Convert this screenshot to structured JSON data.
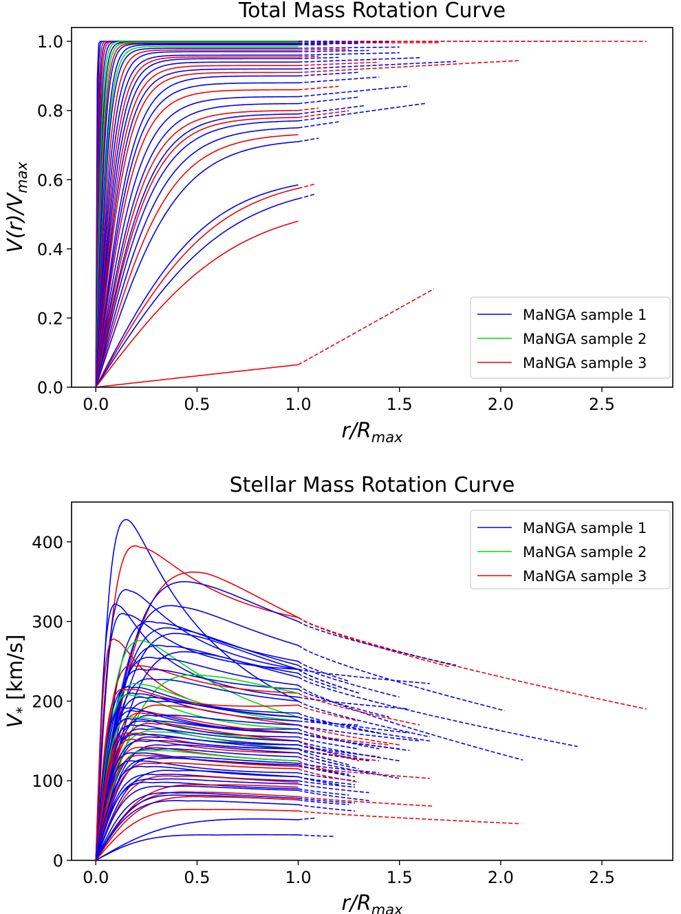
{
  "chart_data": [
    {
      "type": "line",
      "title": "Total Mass Rotation Curve",
      "xlabel": {
        "base": "r/R",
        "sub": "max"
      },
      "ylabel": {
        "base": "V(r)/V",
        "sub": "max"
      },
      "xlim": [
        -0.12,
        2.85
      ],
      "ylim": [
        0,
        1.04
      ],
      "xticks": [
        "0.0",
        "0.5",
        "1.0",
        "1.5",
        "2.0",
        "2.5"
      ],
      "xtick_values": [
        0,
        0.5,
        1.0,
        1.5,
        2.0,
        2.5
      ],
      "yticks": [
        "0.0",
        "0.2",
        "0.4",
        "0.6",
        "0.8",
        "1.0"
      ],
      "ytick_values": [
        0,
        0.2,
        0.4,
        0.6,
        0.8,
        1.0
      ],
      "legend": {
        "position": "lower-right",
        "entries": [
          {
            "label": "MaNGA sample 1",
            "color": "#0000ee"
          },
          {
            "label": "MaNGA sample 2",
            "color": "#00dd00"
          },
          {
            "label": "MaNGA sample 3",
            "color": "#ee0000"
          }
        ]
      },
      "line_style": "solid for r/R_max <= 1, dashed beyond",
      "curves": [
        {
          "s": 1,
          "c": 0.005,
          "vend": 1.0,
          "xend": 1.0
        },
        {
          "s": 1,
          "c": 0.008,
          "vend": 1.0,
          "xend": 1.03
        },
        {
          "s": 3,
          "c": 0.012,
          "vend": 1.0,
          "xend": 1.0
        },
        {
          "s": 1,
          "c": 0.016,
          "vend": 1.0,
          "xend": 2.38
        },
        {
          "s": 3,
          "c": 0.02,
          "vend": 1.0,
          "xend": 2.72
        },
        {
          "s": 1,
          "c": 0.025,
          "vend": 0.999,
          "xend": 1.2
        },
        {
          "s": 2,
          "c": 0.03,
          "vend": 0.999,
          "xend": 1.0
        },
        {
          "s": 1,
          "c": 0.035,
          "vend": 0.998,
          "xend": 1.45
        },
        {
          "s": 2,
          "c": 0.04,
          "vend": 0.997,
          "xend": 1.05
        },
        {
          "s": 3,
          "c": 0.045,
          "vend": 0.995,
          "xend": 1.7
        },
        {
          "s": 1,
          "c": 0.05,
          "vend": 0.993,
          "xend": 1.3
        },
        {
          "s": 1,
          "c": 0.06,
          "vend": 0.99,
          "xend": 1.15
        },
        {
          "s": 2,
          "c": 0.065,
          "vend": 0.985,
          "xend": 1.0
        },
        {
          "s": 1,
          "c": 0.07,
          "vend": 0.98,
          "xend": 1.5
        },
        {
          "s": 3,
          "c": 0.08,
          "vend": 0.975,
          "xend": 1.25
        },
        {
          "s": 1,
          "c": 0.09,
          "vend": 0.97,
          "xend": 1.35
        },
        {
          "s": 1,
          "c": 0.1,
          "vend": 0.96,
          "xend": 1.5
        },
        {
          "s": 3,
          "c": 0.11,
          "vend": 0.955,
          "xend": 1.1
        },
        {
          "s": 1,
          "c": 0.12,
          "vend": 0.95,
          "xend": 1.2
        },
        {
          "s": 1,
          "c": 0.13,
          "vend": 0.94,
          "xend": 1.6
        },
        {
          "s": 3,
          "c": 0.14,
          "vend": 0.93,
          "xend": 1.4
        },
        {
          "s": 1,
          "c": 0.15,
          "vend": 0.92,
          "xend": 1.78
        },
        {
          "s": 3,
          "c": 0.16,
          "vend": 0.91,
          "xend": 2.1
        },
        {
          "s": 1,
          "c": 0.18,
          "vend": 0.9,
          "xend": 1.3
        },
        {
          "s": 1,
          "c": 0.19,
          "vend": 0.88,
          "xend": 1.4
        },
        {
          "s": 3,
          "c": 0.2,
          "vend": 0.86,
          "xend": 1.2
        },
        {
          "s": 1,
          "c": 0.22,
          "vend": 0.84,
          "xend": 1.55
        },
        {
          "s": 1,
          "c": 0.24,
          "vend": 0.82,
          "xend": 1.3
        },
        {
          "s": 3,
          "c": 0.25,
          "vend": 0.8,
          "xend": 1.1
        },
        {
          "s": 1,
          "c": 0.27,
          "vend": 0.79,
          "xend": 1.33
        },
        {
          "s": 3,
          "c": 0.28,
          "vend": 0.78,
          "xend": 1.25
        },
        {
          "s": 1,
          "c": 0.3,
          "vend": 0.77,
          "xend": 1.63
        },
        {
          "s": 1,
          "c": 0.33,
          "vend": 0.75,
          "xend": 1.2
        },
        {
          "s": 3,
          "c": 0.36,
          "vend": 0.73,
          "xend": 1.0
        },
        {
          "s": 1,
          "c": 0.4,
          "vend": 0.71,
          "xend": 1.1
        },
        {
          "s": 1,
          "c": 0.55,
          "vend": 0.585,
          "xend": 1.0
        },
        {
          "s": 3,
          "c": 0.6,
          "vend": 0.575,
          "xend": 1.08
        },
        {
          "s": 1,
          "c": 0.65,
          "vend": 0.545,
          "xend": 1.08
        },
        {
          "s": 3,
          "c": 0.7,
          "vend": 0.48,
          "xend": 1.0
        },
        {
          "s": 3,
          "c": 6.0,
          "vend": 0.065,
          "xend": 1.67
        }
      ]
    },
    {
      "type": "line",
      "title": "Stellar Mass Rotation Curve",
      "xlabel": {
        "base": "r/R",
        "sub": "max"
      },
      "ylabel": {
        "base": "V",
        "sub": "*",
        "rest": " [km/s]"
      },
      "xlim": [
        -0.12,
        2.85
      ],
      "ylim": [
        0,
        450
      ],
      "xticks": [
        "0.0",
        "0.5",
        "1.0",
        "1.5",
        "2.0",
        "2.5"
      ],
      "xtick_values": [
        0,
        0.5,
        1.0,
        1.5,
        2.0,
        2.5
      ],
      "yticks": [
        "0",
        "100",
        "200",
        "300",
        "400"
      ],
      "ytick_values": [
        0,
        100,
        200,
        300,
        400
      ],
      "legend": {
        "position": "upper-right",
        "entries": [
          {
            "label": "MaNGA sample 1",
            "color": "#0000ee"
          },
          {
            "label": "MaNGA sample 2",
            "color": "#00dd00"
          },
          {
            "label": "MaNGA sample 3",
            "color": "#ee0000"
          }
        ]
      },
      "line_style": "solid for r/R_max <= 1, dashed beyond",
      "curves": [
        {
          "s": 1,
          "rp": 0.17,
          "vp": 428,
          "v1": 200,
          "xend": 1.0
        },
        {
          "s": 3,
          "rp": 0.22,
          "vp": 395,
          "v1": 305,
          "xend": 2.72,
          "vend": 190
        },
        {
          "s": 3,
          "rp": 0.55,
          "vp": 362,
          "v1": 305,
          "xend": 1.75,
          "vend": 243
        },
        {
          "s": 1,
          "rp": 0.5,
          "vp": 350,
          "v1": 300,
          "xend": 1.78,
          "vend": 245
        },
        {
          "s": 1,
          "rp": 0.17,
          "vp": 340,
          "v1": 240,
          "xend": 1.65,
          "vend": 222
        },
        {
          "s": 1,
          "rp": 0.11,
          "vp": 322,
          "v1": 205,
          "xend": 1.55,
          "vend": 190
        },
        {
          "s": 1,
          "rp": 0.42,
          "vp": 320,
          "v1": 270,
          "xend": 2.02,
          "vend": 188
        },
        {
          "s": 1,
          "rp": 0.15,
          "vp": 310,
          "v1": 240,
          "xend": 1.3,
          "vend": 210
        },
        {
          "s": 1,
          "rp": 0.3,
          "vp": 300,
          "v1": 250,
          "xend": 1.25,
          "vend": 225
        },
        {
          "s": 1,
          "rp": 0.4,
          "vp": 292,
          "v1": 245,
          "xend": 1.5,
          "vend": 205
        },
        {
          "s": 1,
          "rp": 0.45,
          "vp": 285,
          "v1": 240,
          "xend": 1.3,
          "vend": 210
        },
        {
          "s": 3,
          "rp": 0.1,
          "vp": 278,
          "v1": 180,
          "xend": 1.0
        },
        {
          "s": 2,
          "rp": 0.25,
          "vp": 276,
          "v1": 180,
          "xend": 1.0
        },
        {
          "s": 1,
          "rp": 0.35,
          "vp": 270,
          "v1": 235,
          "xend": 1.2,
          "vend": 215
        },
        {
          "s": 1,
          "rp": 0.5,
          "vp": 262,
          "v1": 230,
          "xend": 2.38,
          "vend": 143
        },
        {
          "s": 1,
          "rp": 0.3,
          "vp": 255,
          "v1": 220,
          "xend": 2.11,
          "vend": 126
        },
        {
          "s": 3,
          "rp": 0.2,
          "vp": 245,
          "v1": 210,
          "xend": 1.6,
          "vend": 170
        },
        {
          "s": 1,
          "rp": 0.25,
          "vp": 240,
          "v1": 215,
          "xend": 1.45,
          "vend": 180
        },
        {
          "s": 2,
          "rp": 0.55,
          "vp": 233,
          "v1": 210,
          "xend": 1.0
        },
        {
          "s": 1,
          "rp": 0.3,
          "vp": 228,
          "v1": 200,
          "xend": 1.65,
          "vend": 155
        },
        {
          "s": 2,
          "rp": 0.22,
          "vp": 222,
          "v1": 175,
          "xend": 1.0
        },
        {
          "s": 1,
          "rp": 0.18,
          "vp": 218,
          "v1": 185,
          "xend": 1.4,
          "vend": 160
        },
        {
          "s": 3,
          "rp": 0.15,
          "vp": 215,
          "v1": 195,
          "xend": 1.3,
          "vend": 175
        },
        {
          "s": 1,
          "rp": 0.2,
          "vp": 210,
          "v1": 175,
          "xend": 1.3,
          "vend": 170
        },
        {
          "s": 2,
          "rp": 0.18,
          "vp": 208,
          "v1": 165,
          "xend": 1.0
        },
        {
          "s": 1,
          "rp": 0.25,
          "vp": 205,
          "v1": 180,
          "xend": 1.55,
          "vend": 160
        },
        {
          "s": 1,
          "rp": 0.3,
          "vp": 200,
          "v1": 180,
          "xend": 1.65,
          "vend": 150
        },
        {
          "s": 3,
          "rp": 0.35,
          "vp": 195,
          "v1": 170,
          "xend": 1.5,
          "vend": 145
        },
        {
          "s": 1,
          "rp": 0.15,
          "vp": 192,
          "v1": 165,
          "xend": 1.4,
          "vend": 140
        },
        {
          "s": 1,
          "rp": 0.2,
          "vp": 188,
          "v1": 160,
          "xend": 1.55,
          "vend": 138
        },
        {
          "s": 3,
          "rp": 0.25,
          "vp": 185,
          "v1": 160,
          "xend": 1.45,
          "vend": 145
        },
        {
          "s": 1,
          "rp": 0.3,
          "vp": 182,
          "v1": 170,
          "xend": 1.6,
          "vend": 150
        },
        {
          "s": 2,
          "rp": 0.2,
          "vp": 180,
          "v1": 150,
          "xend": 1.0
        },
        {
          "s": 1,
          "rp": 0.18,
          "vp": 178,
          "v1": 155,
          "xend": 1.3,
          "vend": 140
        },
        {
          "s": 1,
          "rp": 0.25,
          "vp": 175,
          "v1": 160,
          "xend": 1.5,
          "vend": 140
        },
        {
          "s": 3,
          "rp": 0.3,
          "vp": 172,
          "v1": 150,
          "xend": 1.3,
          "vend": 125
        },
        {
          "s": 1,
          "rp": 0.2,
          "vp": 170,
          "v1": 145,
          "xend": 1.4,
          "vend": 130
        },
        {
          "s": 1,
          "rp": 0.25,
          "vp": 165,
          "v1": 150,
          "xend": 1.5,
          "vend": 125
        },
        {
          "s": 2,
          "rp": 0.3,
          "vp": 162,
          "v1": 140,
          "xend": 1.0
        },
        {
          "s": 3,
          "rp": 0.18,
          "vp": 160,
          "v1": 140,
          "xend": 1.4,
          "vend": 125
        },
        {
          "s": 1,
          "rp": 0.22,
          "vp": 158,
          "v1": 145,
          "xend": 1.3,
          "vend": 130
        },
        {
          "s": 1,
          "rp": 0.3,
          "vp": 155,
          "v1": 140,
          "xend": 1.25,
          "vend": 120
        },
        {
          "s": 3,
          "rp": 0.2,
          "vp": 152,
          "v1": 135,
          "xend": 1.2,
          "vend": 120
        },
        {
          "s": 1,
          "rp": 0.25,
          "vp": 150,
          "v1": 140,
          "xend": 1.35,
          "vend": 125
        },
        {
          "s": 1,
          "rp": 0.35,
          "vp": 145,
          "v1": 135,
          "xend": 1.3,
          "vend": 115
        },
        {
          "s": 3,
          "rp": 0.25,
          "vp": 142,
          "v1": 125,
          "xend": 1.2,
          "vend": 110
        },
        {
          "s": 1,
          "rp": 0.3,
          "vp": 140,
          "v1": 130,
          "xend": 1.5,
          "vend": 103
        },
        {
          "s": 2,
          "rp": 0.28,
          "vp": 138,
          "v1": 125,
          "xend": 1.0
        },
        {
          "s": 1,
          "rp": 0.2,
          "vp": 135,
          "v1": 120,
          "xend": 1.25,
          "vend": 108
        },
        {
          "s": 3,
          "rp": 0.25,
          "vp": 132,
          "v1": 118,
          "xend": 1.65,
          "vend": 103
        },
        {
          "s": 1,
          "rp": 0.35,
          "vp": 130,
          "v1": 122,
          "xend": 1.4,
          "vend": 110
        },
        {
          "s": 1,
          "rp": 0.3,
          "vp": 128,
          "v1": 120,
          "xend": 1.28,
          "vend": 105
        },
        {
          "s": 1,
          "rp": 0.2,
          "vp": 125,
          "v1": 110,
          "xend": 1.28,
          "vend": 100
        },
        {
          "s": 3,
          "rp": 0.3,
          "vp": 122,
          "v1": 115,
          "xend": 1.3,
          "vend": 98
        },
        {
          "s": 1,
          "rp": 0.25,
          "vp": 118,
          "v1": 105,
          "xend": 1.28,
          "vend": 95
        },
        {
          "s": 1,
          "rp": 0.4,
          "vp": 113,
          "v1": 105,
          "xend": 1.2,
          "vend": 95
        },
        {
          "s": 1,
          "rp": 0.3,
          "vp": 108,
          "v1": 100,
          "xend": 1.28,
          "vend": 92
        },
        {
          "s": 3,
          "rp": 0.4,
          "vp": 106,
          "v1": 98,
          "xend": 1.0
        },
        {
          "s": 1,
          "rp": 0.3,
          "vp": 102,
          "v1": 96,
          "xend": 1.35,
          "vend": 85
        },
        {
          "s": 1,
          "rp": 0.28,
          "vp": 98,
          "v1": 90,
          "xend": 1.25,
          "vend": 82
        },
        {
          "s": 3,
          "rp": 0.55,
          "vp": 95,
          "v1": 92,
          "xend": 1.0
        },
        {
          "s": 1,
          "rp": 0.35,
          "vp": 93,
          "v1": 88,
          "xend": 1.35,
          "vend": 75
        },
        {
          "s": 3,
          "rp": 0.5,
          "vp": 86,
          "v1": 80,
          "xend": 1.67,
          "vend": 68
        },
        {
          "s": 1,
          "rp": 0.4,
          "vp": 85,
          "v1": 78,
          "xend": 1.28,
          "vend": 72
        },
        {
          "s": 1,
          "rp": 0.45,
          "vp": 82,
          "v1": 76,
          "xend": 1.25,
          "vend": 70
        },
        {
          "s": 3,
          "rp": 0.55,
          "vp": 80,
          "v1": 76,
          "xend": 1.0
        },
        {
          "s": 1,
          "rp": 0.45,
          "vp": 75,
          "v1": 70,
          "xend": 1.28,
          "vend": 62
        },
        {
          "s": 3,
          "rp": 0.55,
          "vp": 64,
          "v1": 62,
          "xend": 2.1,
          "vend": 46
        },
        {
          "s": 1,
          "rp": 0.9,
          "vp": 52,
          "v1": 51,
          "xend": 1.08,
          "vend": 53
        },
        {
          "s": 1,
          "rp": 0.6,
          "vp": 32,
          "v1": 32,
          "xend": 1.18,
          "vend": 30
        }
      ]
    }
  ]
}
